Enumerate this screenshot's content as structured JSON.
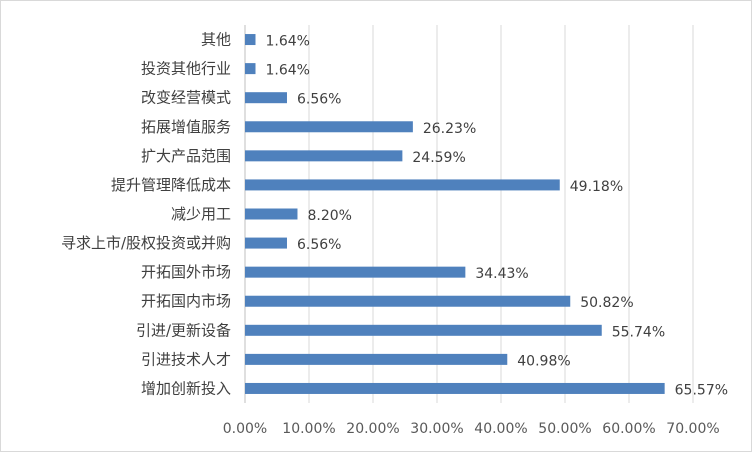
{
  "chart_data": {
    "type": "bar",
    "orientation": "horizontal",
    "categories": [
      "其他",
      "投资其他行业",
      "改变经营模式",
      "拓展增值服务",
      "扩大产品范围",
      "提升管理降低成本",
      "减少用工",
      "寻求上市/股权投资或并购",
      "开拓国外市场",
      "开拓国内市场",
      "引进/更新设备",
      "引进技术人才",
      "增加创新投入"
    ],
    "values": [
      1.64,
      1.64,
      6.56,
      26.23,
      24.59,
      49.18,
      8.2,
      6.56,
      34.43,
      50.82,
      55.74,
      40.98,
      65.57
    ],
    "value_labels": [
      "1.64%",
      "1.64%",
      "6.56%",
      "26.23%",
      "24.59%",
      "49.18%",
      "8.20%",
      "6.56%",
      "34.43%",
      "50.82%",
      "55.74%",
      "40.98%",
      "65.57%"
    ],
    "xlim": [
      0,
      70
    ],
    "x_ticks": [
      0,
      10,
      20,
      30,
      40,
      50,
      60,
      70
    ],
    "x_tick_labels": [
      "0.00%",
      "10.00%",
      "20.00%",
      "30.00%",
      "40.00%",
      "50.00%",
      "60.00%",
      "70.00%"
    ],
    "title": "",
    "xlabel": "",
    "ylabel": "",
    "grid": "vertical",
    "legend": "none",
    "bar_color": "#4f81bd",
    "grid_color": "#d9d9d9",
    "text_color": "#404040"
  }
}
